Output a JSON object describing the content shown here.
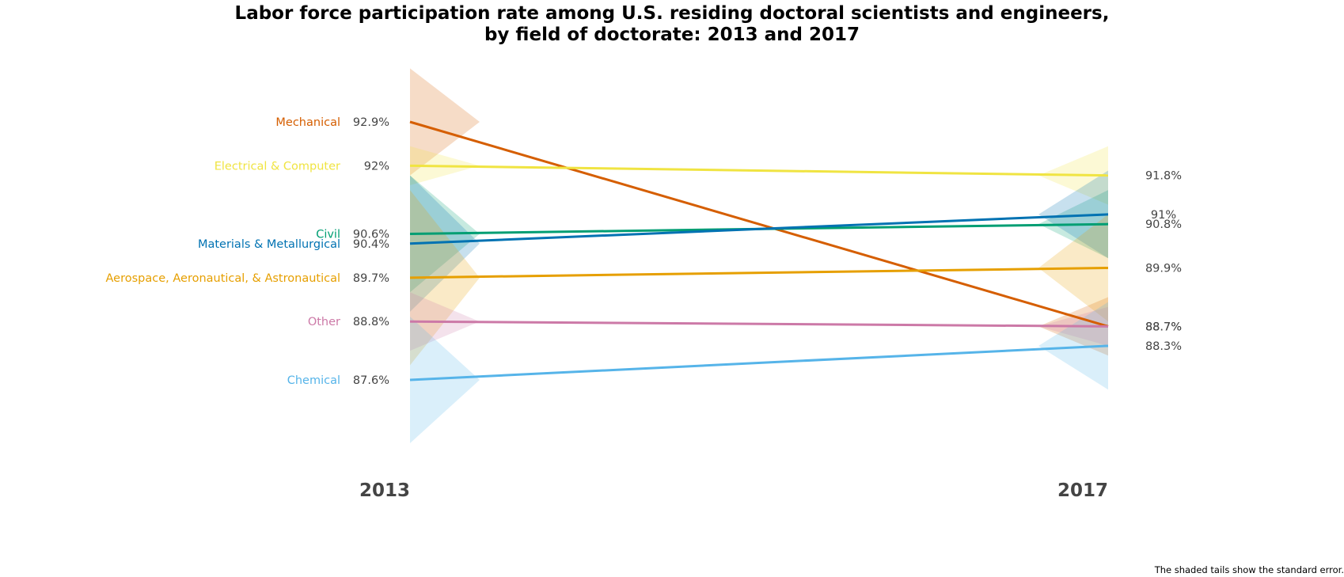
{
  "chart_data": {
    "type": "line",
    "title_line1": "Labor force participation rate among U.S. residing doctoral scientists and engineers,",
    "title_line2": "by field of doctorate: 2013 and 2017",
    "x": [
      "2013",
      "2017"
    ],
    "ylim": [
      85.8,
      94.6
    ],
    "grid": false,
    "legend": "none",
    "footnote": "The shaded tails show the standard error.",
    "series": [
      {
        "name": "Mechanical",
        "values": [
          92.9,
          88.7
        ],
        "labels": [
          "92.9%",
          "88.7%"
        ],
        "color": "#D55E00",
        "se": [
          1.1,
          0.6
        ]
      },
      {
        "name": "Electrical & Computer",
        "values": [
          92.0,
          91.8
        ],
        "labels": [
          "92%",
          "91.8%"
        ],
        "color": "#F0E442",
        "se": [
          0.4,
          0.6
        ]
      },
      {
        "name": "Civil",
        "values": [
          90.6,
          90.8
        ],
        "labels": [
          "90.6%",
          "90.8%"
        ],
        "color": "#009E73",
        "se": [
          1.2,
          0.7
        ]
      },
      {
        "name": "Materials & Metallurgical",
        "values": [
          90.4,
          91.0
        ],
        "labels": [
          "90.4%",
          "91%"
        ],
        "color": "#0072B2",
        "se": [
          1.4,
          0.9
        ]
      },
      {
        "name": "Aerospace, Aeronautical, & Astronautical",
        "values": [
          89.7,
          89.9
        ],
        "labels": [
          "89.7%",
          "89.9%"
        ],
        "color": "#E69F00",
        "se": [
          1.8,
          1.1
        ]
      },
      {
        "name": "Other",
        "values": [
          88.8,
          88.7
        ],
        "labels": [
          "88.8%",
          "88.7%"
        ],
        "color": "#CC79A7",
        "se": [
          0.6,
          0.4
        ]
      },
      {
        "name": "Chemical",
        "values": [
          87.6,
          88.3
        ],
        "labels": [
          "87.6%",
          "88.3%"
        ],
        "color": "#56B4E9",
        "se": [
          1.3,
          0.9
        ]
      }
    ]
  }
}
